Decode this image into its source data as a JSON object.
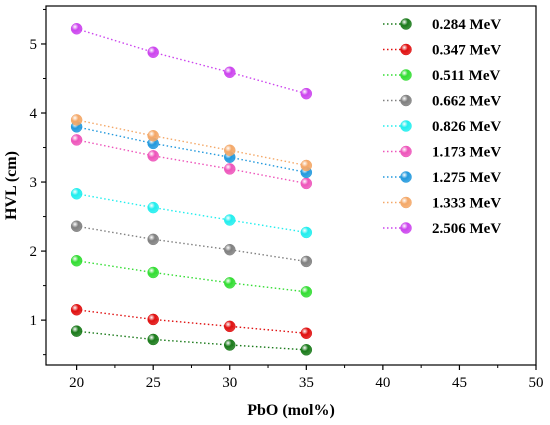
{
  "chart_data": {
    "type": "scatter",
    "xlabel": "PbO (mol%)",
    "ylabel": "HVL (cm)",
    "xlim": [
      18,
      50
    ],
    "ylim": [
      0.35,
      5.55
    ],
    "xticks": [
      20,
      25,
      30,
      35,
      40,
      45,
      50
    ],
    "yticks": [
      1,
      2,
      3,
      4,
      5
    ],
    "legend_position": "top-right",
    "x": [
      20,
      25,
      30,
      35
    ],
    "series": [
      {
        "name": "0.284 MeV",
        "color": "#1a7a1a",
        "values": [
          0.84,
          0.72,
          0.64,
          0.57
        ]
      },
      {
        "name": "0.347 MeV",
        "color": "#e01010",
        "values": [
          1.15,
          1.01,
          0.91,
          0.81
        ]
      },
      {
        "name": "0.511 MeV",
        "color": "#33dd33",
        "values": [
          1.86,
          1.69,
          1.54,
          1.41
        ]
      },
      {
        "name": "0.662 MeV",
        "color": "#808080",
        "values": [
          2.36,
          2.17,
          2.02,
          1.85
        ]
      },
      {
        "name": "0.826 MeV",
        "color": "#22eeee",
        "values": [
          2.83,
          2.63,
          2.45,
          2.27
        ]
      },
      {
        "name": "1.173 MeV",
        "color": "#ee55bb",
        "values": [
          3.61,
          3.38,
          3.19,
          2.98
        ]
      },
      {
        "name": "1.275 MeV",
        "color": "#2299dd",
        "values": [
          3.8,
          3.56,
          3.36,
          3.14
        ]
      },
      {
        "name": "1.333 MeV",
        "color": "#f4a868",
        "values": [
          3.9,
          3.67,
          3.46,
          3.24
        ]
      },
      {
        "name": "2.506 MeV",
        "color": "#cc44ee",
        "values": [
          5.22,
          4.88,
          4.59,
          4.28
        ]
      }
    ]
  }
}
